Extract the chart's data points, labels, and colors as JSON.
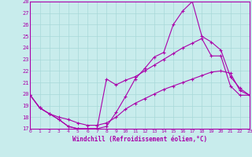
{
  "xlabel": "Windchill (Refroidissement éolien,°C)",
  "xlim": [
    0,
    23
  ],
  "ylim": [
    17,
    28
  ],
  "yticks": [
    17,
    18,
    19,
    20,
    21,
    22,
    23,
    24,
    25,
    26,
    27,
    28
  ],
  "xticks": [
    0,
    1,
    2,
    3,
    4,
    5,
    6,
    7,
    8,
    9,
    10,
    11,
    12,
    13,
    14,
    15,
    16,
    17,
    18,
    19,
    20,
    21,
    22,
    23
  ],
  "bg_color": "#c8ecec",
  "grid_color": "#a8d8d8",
  "line_color": "#aa00aa",
  "line1_x": [
    0,
    1,
    2,
    3,
    4,
    5,
    6,
    7,
    8,
    9,
    10,
    11,
    12,
    13,
    14,
    15,
    16,
    17,
    18,
    19,
    20,
    21,
    22,
    23
  ],
  "line1_y": [
    19.9,
    18.8,
    18.3,
    17.8,
    17.2,
    17.0,
    17.0,
    17.0,
    17.2,
    18.4,
    19.8,
    21.3,
    22.2,
    23.2,
    23.6,
    26.0,
    27.2,
    28.0,
    25.0,
    24.5,
    23.8,
    21.5,
    20.5,
    19.9
  ],
  "line2_x": [
    0,
    1,
    2,
    3,
    4,
    5,
    6,
    7,
    8,
    9,
    10,
    11,
    12,
    13,
    14,
    15,
    16,
    17,
    18,
    19,
    20,
    21,
    22,
    23
  ],
  "line2_y": [
    19.9,
    18.8,
    18.3,
    17.8,
    17.2,
    17.0,
    17.0,
    17.0,
    21.3,
    20.8,
    21.2,
    21.5,
    22.0,
    22.5,
    23.0,
    23.5,
    24.0,
    24.4,
    24.8,
    23.3,
    23.3,
    20.7,
    19.9,
    19.9
  ],
  "line3_x": [
    0,
    1,
    2,
    3,
    4,
    5,
    6,
    7,
    8,
    9,
    10,
    11,
    12,
    13,
    14,
    15,
    16,
    17,
    18,
    19,
    20,
    21,
    22,
    23
  ],
  "line3_y": [
    19.9,
    18.8,
    18.3,
    18.0,
    17.8,
    17.5,
    17.3,
    17.3,
    17.5,
    18.0,
    18.7,
    19.2,
    19.6,
    20.0,
    20.4,
    20.7,
    21.0,
    21.3,
    21.6,
    21.9,
    22.0,
    21.8,
    20.3,
    19.9
  ]
}
